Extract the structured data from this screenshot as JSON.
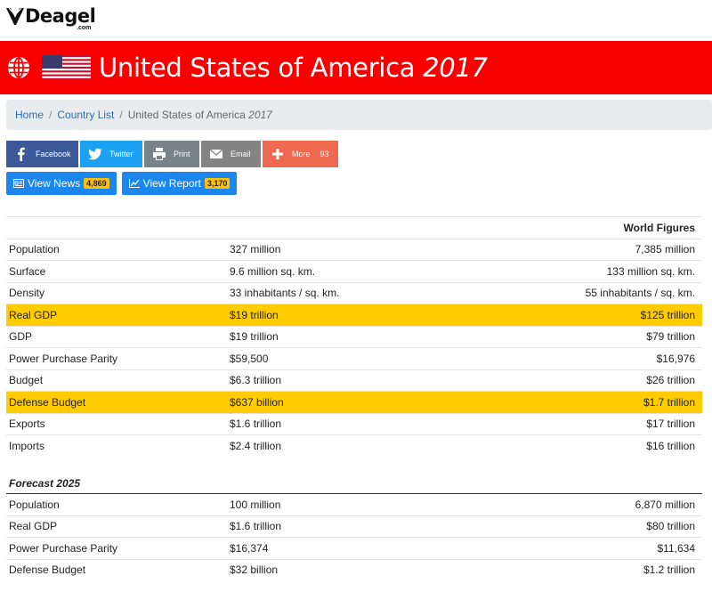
{
  "logo": {
    "name": "Deagel",
    "sub": ".com"
  },
  "banner": {
    "country": "United States of America",
    "year": "2017",
    "bg": "#f90000"
  },
  "breadcrumb": {
    "home": "Home",
    "list": "Country List",
    "current": "United States of America",
    "year": "2017"
  },
  "share": [
    {
      "label": "Facebook",
      "icon": "facebook-icon",
      "color": "#3b5998"
    },
    {
      "label": "Twitter",
      "icon": "twitter-icon",
      "color": "#1da1f2"
    },
    {
      "label": "Print",
      "icon": "printer-icon",
      "color": "#778387"
    },
    {
      "label": "Email",
      "icon": "envelope-icon",
      "color": "#848484"
    },
    {
      "label": "More",
      "count": "93",
      "icon": "plus-icon",
      "color": "#ef6850"
    }
  ],
  "view": {
    "news": {
      "label": "View News",
      "count": "4,869"
    },
    "report": {
      "label": "View Report",
      "count": "3,170"
    }
  },
  "stats": {
    "world_header": "World Figures",
    "rows": [
      {
        "label": "Population",
        "value": "327 million",
        "world": "7,385 million"
      },
      {
        "label": "Surface",
        "value": "9.6 million sq. km.",
        "world": "133 million sq. km."
      },
      {
        "label": "Density",
        "value": "33 inhabitants / sq. km.",
        "world": "55 inhabitants / sq. km."
      },
      {
        "label": "Real GDP",
        "value": "$19 trillion",
        "world": "$125 trillion"
      },
      {
        "label": "GDP",
        "value": "$19 trillion",
        "world": "$79 trillion"
      },
      {
        "label": "Power Purchase Parity",
        "value": "$59,500",
        "world": "$16,976"
      },
      {
        "label": "Budget",
        "value": "$6.3 trillion",
        "world": "$26 trillion"
      },
      {
        "label": "Defense Budget",
        "value": "$637 billion",
        "world": "$1.7 trillion"
      },
      {
        "label": "Exports",
        "value": "$1.6 trillion",
        "world": "$17 trillion"
      },
      {
        "label": "Imports",
        "value": "$2.4 trillion",
        "world": "$16 trillion"
      }
    ]
  },
  "forecast": {
    "title": "Forecast 2025",
    "rows": [
      {
        "label": "Population",
        "value": "100 million",
        "world": "6,870 million"
      },
      {
        "label": "Real GDP",
        "value": "$1.6 trillion",
        "world": "$80 trillion"
      },
      {
        "label": "Power Purchase Parity",
        "value": "$16,374",
        "world": "$11,634"
      },
      {
        "label": "Defense Budget",
        "value": "$32 billion",
        "world": "$1.2 trillion"
      }
    ]
  },
  "highlight_color": "#ffcc00"
}
